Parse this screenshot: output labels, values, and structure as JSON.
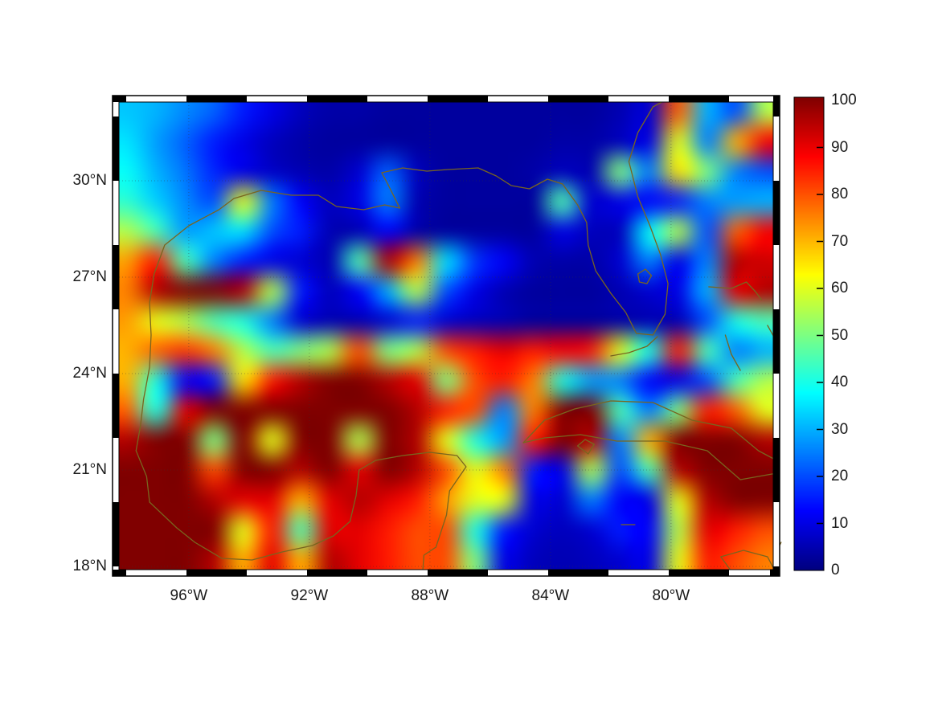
{
  "figure": {
    "background": "#ffffff",
    "colors": {
      "coastline": "#79651f",
      "graticule": "#333333",
      "frame": "#000000",
      "label": "#1a1a1a"
    }
  },
  "chart_data": {
    "type": "heatmap",
    "title": "",
    "colormap": "jet",
    "legend_position": "right-colorbar",
    "grid_on": true,
    "x_axis": {
      "tick_labels": [
        "96°W",
        "92°W",
        "88°W",
        "84°W",
        "80°W"
      ],
      "tick_lons": [
        -96,
        -92,
        -88,
        -84,
        -80
      ],
      "range_lon": [
        -98.5,
        -76.4
      ]
    },
    "y_axis": {
      "tick_labels": [
        "30°N",
        "27°N",
        "24°N",
        "21°N",
        "18°N"
      ],
      "tick_lats": [
        30,
        27,
        24,
        21,
        18
      ],
      "range_lat": [
        17.7,
        32.65
      ]
    },
    "colorbar": {
      "min": 0,
      "max": 100,
      "tick_values": [
        0,
        10,
        20,
        30,
        40,
        50,
        60,
        70,
        80,
        90,
        100
      ],
      "tick_labels": [
        "0",
        "10",
        "20",
        "30",
        "40",
        "50",
        "60",
        "70",
        "80",
        "90",
        "100"
      ]
    },
    "grid": {
      "lon_min": -98.5,
      "lon_max": -76.5,
      "lat_min": 17.5,
      "lat_max": 32.5,
      "cols": 23,
      "rows": 16,
      "row_order": "north-to-south",
      "values": [
        [
          32,
          30,
          26,
          22,
          15,
          10,
          6,
          4,
          4,
          3,
          3,
          3,
          3,
          3,
          3,
          3,
          3,
          5,
          8,
          78,
          30,
          20,
          55
        ],
        [
          35,
          28,
          22,
          15,
          10,
          6,
          4,
          3,
          3,
          3,
          3,
          3,
          3,
          3,
          3,
          4,
          4,
          6,
          10,
          60,
          25,
          70,
          88
        ],
        [
          38,
          30,
          24,
          16,
          10,
          7,
          5,
          4,
          8,
          22,
          6,
          3,
          3,
          3,
          4,
          6,
          5,
          50,
          25,
          65,
          50,
          25,
          20
        ],
        [
          42,
          33,
          26,
          20,
          60,
          25,
          12,
          6,
          10,
          25,
          5,
          3,
          3,
          3,
          3,
          45,
          8,
          10,
          12,
          15,
          25,
          28,
          30
        ],
        [
          55,
          45,
          28,
          32,
          35,
          20,
          15,
          5,
          5,
          12,
          4,
          3,
          3,
          3,
          3,
          10,
          6,
          6,
          38,
          55,
          20,
          78,
          88
        ],
        [
          72,
          85,
          45,
          25,
          15,
          10,
          8,
          5,
          45,
          95,
          75,
          35,
          18,
          12,
          5,
          4,
          4,
          8,
          25,
          10,
          25,
          95,
          92
        ],
        [
          75,
          95,
          100,
          100,
          95,
          55,
          15,
          6,
          12,
          30,
          55,
          20,
          10,
          5,
          3,
          3,
          3,
          5,
          8,
          10,
          30,
          90,
          95
        ],
        [
          72,
          60,
          55,
          45,
          40,
          25,
          8,
          5,
          5,
          8,
          15,
          8,
          6,
          5,
          3,
          3,
          3,
          4,
          5,
          5,
          20,
          40,
          45
        ],
        [
          70,
          78,
          82,
          75,
          55,
          45,
          50,
          55,
          80,
          50,
          55,
          80,
          85,
          90,
          85,
          88,
          85,
          60,
          40,
          85,
          45,
          25,
          30
        ],
        [
          70,
          40,
          12,
          15,
          65,
          85,
          95,
          100,
          100,
          95,
          90,
          50,
          80,
          85,
          75,
          40,
          28,
          25,
          12,
          10,
          20,
          45,
          55
        ],
        [
          78,
          40,
          90,
          100,
          100,
          100,
          100,
          100,
          100,
          100,
          95,
          85,
          80,
          25,
          75,
          100,
          100,
          45,
          25,
          50,
          85,
          78,
          60
        ],
        [
          95,
          100,
          100,
          50,
          100,
          60,
          100,
          100,
          55,
          100,
          95,
          60,
          40,
          28,
          85,
          100,
          95,
          25,
          70,
          100,
          100,
          100,
          95
        ],
        [
          100,
          100,
          100,
          80,
          100,
          100,
          95,
          100,
          90,
          100,
          95,
          80,
          60,
          75,
          15,
          10,
          55,
          20,
          45,
          95,
          100,
          100,
          100
        ],
        [
          100,
          100,
          100,
          95,
          90,
          90,
          70,
          90,
          95,
          90,
          85,
          72,
          60,
          60,
          10,
          8,
          25,
          12,
          10,
          60,
          95,
          100,
          100
        ],
        [
          100,
          100,
          100,
          100,
          60,
          85,
          45,
          90,
          90,
          85,
          80,
          80,
          40,
          15,
          8,
          6,
          8,
          15,
          12,
          55,
          90,
          85,
          80
        ],
        [
          100,
          100,
          100,
          95,
          70,
          90,
          70,
          95,
          90,
          85,
          80,
          80,
          50,
          10,
          6,
          5,
          6,
          8,
          10,
          60,
          85,
          80,
          75
        ]
      ]
    }
  },
  "coastlines": {
    "color": "#79651f",
    "paths": [
      [
        [
          -97.75,
          21.6
        ],
        [
          -97.6,
          22.4
        ],
        [
          -97.5,
          23.2
        ],
        [
          -97.3,
          24.2
        ],
        [
          -97.25,
          25.2
        ],
        [
          -97.3,
          26.2
        ],
        [
          -97.15,
          27.1
        ],
        [
          -96.8,
          28.0
        ],
        [
          -96.0,
          28.6
        ],
        [
          -95.0,
          29.1
        ],
        [
          -94.5,
          29.45
        ],
        [
          -93.6,
          29.7
        ],
        [
          -92.6,
          29.55
        ],
        [
          -91.7,
          29.55
        ],
        [
          -91.1,
          29.2
        ],
        [
          -90.2,
          29.1
        ],
        [
          -89.5,
          29.25
        ],
        [
          -89.0,
          29.15
        ],
        [
          -89.4,
          29.9
        ],
        [
          -89.6,
          30.25
        ],
        [
          -88.9,
          30.4
        ],
        [
          -88.1,
          30.3
        ],
        [
          -87.4,
          30.35
        ],
        [
          -86.4,
          30.4
        ],
        [
          -85.8,
          30.15
        ],
        [
          -85.3,
          29.85
        ],
        [
          -84.7,
          29.75
        ],
        [
          -84.1,
          30.05
        ],
        [
          -83.6,
          29.9
        ],
        [
          -83.1,
          29.25
        ],
        [
          -82.8,
          28.7
        ],
        [
          -82.75,
          28.0
        ],
        [
          -82.5,
          27.2
        ],
        [
          -82.0,
          26.5
        ],
        [
          -81.5,
          25.9
        ],
        [
          -81.15,
          25.25
        ],
        [
          -80.6,
          25.2
        ],
        [
          -80.2,
          25.85
        ],
        [
          -80.1,
          26.8
        ],
        [
          -80.35,
          27.7
        ],
        [
          -80.7,
          28.6
        ],
        [
          -81.1,
          29.5
        ],
        [
          -81.4,
          30.6
        ],
        [
          -81.1,
          31.5
        ],
        [
          -80.6,
          32.3
        ],
        [
          -79.9,
          32.65
        ]
      ],
      [
        [
          -97.75,
          21.6
        ],
        [
          -97.4,
          20.8
        ],
        [
          -97.3,
          20.0
        ],
        [
          -96.4,
          19.2
        ],
        [
          -95.8,
          18.75
        ],
        [
          -94.9,
          18.25
        ],
        [
          -93.9,
          18.2
        ],
        [
          -92.9,
          18.45
        ],
        [
          -91.9,
          18.65
        ],
        [
          -91.2,
          18.95
        ],
        [
          -90.65,
          19.4
        ],
        [
          -90.45,
          20.2
        ],
        [
          -90.35,
          21.0
        ],
        [
          -89.8,
          21.3
        ],
        [
          -88.9,
          21.45
        ],
        [
          -88.0,
          21.55
        ],
        [
          -87.1,
          21.45
        ],
        [
          -86.8,
          21.1
        ],
        [
          -87.35,
          20.35
        ],
        [
          -87.45,
          19.6
        ],
        [
          -87.8,
          18.6
        ],
        [
          -88.2,
          18.35
        ],
        [
          -88.25,
          17.7
        ]
      ],
      [
        [
          -84.9,
          21.85
        ],
        [
          -84.2,
          22.55
        ],
        [
          -83.2,
          22.9
        ],
        [
          -82.0,
          23.15
        ],
        [
          -80.6,
          23.1
        ],
        [
          -79.3,
          22.55
        ],
        [
          -78.0,
          22.3
        ],
        [
          -77.1,
          21.6
        ],
        [
          -76.5,
          21.3
        ],
        [
          -76.5,
          20.9
        ],
        [
          -77.7,
          20.7
        ],
        [
          -78.8,
          21.6
        ],
        [
          -80.2,
          21.9
        ],
        [
          -81.8,
          21.9
        ],
        [
          -83.0,
          22.1
        ],
        [
          -84.2,
          22.0
        ],
        [
          -84.9,
          21.85
        ]
      ],
      [
        [
          -83.1,
          21.75
        ],
        [
          -82.85,
          21.95
        ],
        [
          -82.55,
          21.8
        ],
        [
          -82.75,
          21.5
        ],
        [
          -83.1,
          21.75
        ]
      ],
      [
        [
          -81.1,
          27.1
        ],
        [
          -80.85,
          27.25
        ],
        [
          -80.65,
          27.05
        ],
        [
          -80.8,
          26.8
        ],
        [
          -81.05,
          26.85
        ],
        [
          -81.1,
          27.1
        ]
      ],
      [
        [
          -80.45,
          25.15
        ],
        [
          -80.8,
          24.85
        ],
        [
          -81.4,
          24.65
        ],
        [
          -82.0,
          24.55
        ]
      ],
      [
        [
          -78.75,
          26.7
        ],
        [
          -78.0,
          26.65
        ],
        [
          -77.5,
          26.85
        ],
        [
          -77.2,
          26.55
        ],
        [
          -77.0,
          26.3
        ]
      ],
      [
        [
          -78.2,
          25.2
        ],
        [
          -78.0,
          24.6
        ],
        [
          -77.7,
          24.1
        ]
      ],
      [
        [
          -76.8,
          25.5
        ],
        [
          -76.5,
          25.0
        ],
        [
          -76.6,
          24.6
        ]
      ],
      [
        [
          -78.35,
          18.3
        ],
        [
          -77.6,
          18.5
        ],
        [
          -76.8,
          18.3
        ],
        [
          -76.55,
          17.85
        ],
        [
          -77.3,
          17.75
        ],
        [
          -78.0,
          17.85
        ],
        [
          -78.35,
          18.3
        ]
      ],
      [
        [
          -81.65,
          19.3
        ],
        [
          -81.2,
          19.3
        ]
      ],
      [
        [
          -76.35,
          18.75
        ],
        [
          -76.55,
          18.35
        ],
        [
          -76.45,
          17.85
        ]
      ]
    ]
  }
}
